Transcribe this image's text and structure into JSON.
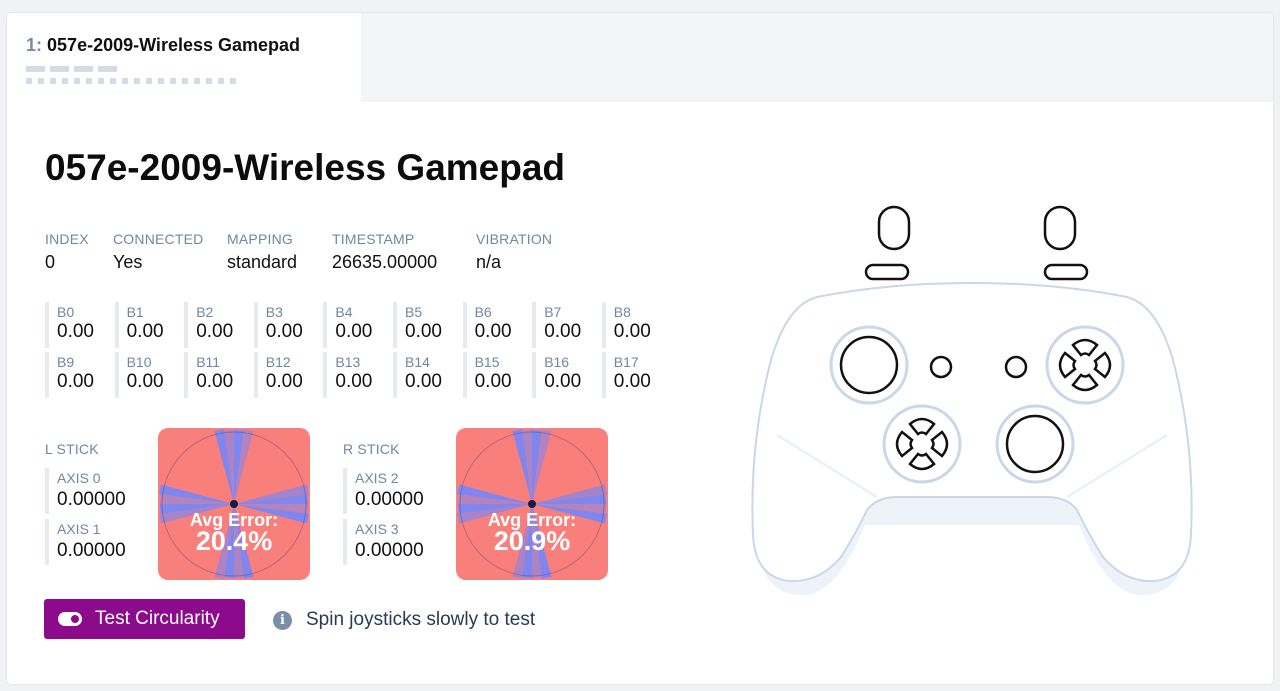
{
  "tab": {
    "index": "1:",
    "label": "057e-2009-Wireless Gamepad"
  },
  "gamepad": {
    "title": "057e-2009-Wireless Gamepad",
    "meta": [
      {
        "key": "INDEX",
        "value": "0"
      },
      {
        "key": "CONNECTED",
        "value": "Yes"
      },
      {
        "key": "MAPPING",
        "value": "standard"
      },
      {
        "key": "TIMESTAMP",
        "value": "26635.00000"
      },
      {
        "key": "VIBRATION",
        "value": "n/a"
      }
    ],
    "buttons": [
      {
        "key": "B0",
        "value": "0.00"
      },
      {
        "key": "B1",
        "value": "0.00"
      },
      {
        "key": "B2",
        "value": "0.00"
      },
      {
        "key": "B3",
        "value": "0.00"
      },
      {
        "key": "B4",
        "value": "0.00"
      },
      {
        "key": "B5",
        "value": "0.00"
      },
      {
        "key": "B6",
        "value": "0.00"
      },
      {
        "key": "B7",
        "value": "0.00"
      },
      {
        "key": "B8",
        "value": "0.00"
      },
      {
        "key": "B9",
        "value": "0.00"
      },
      {
        "key": "B10",
        "value": "0.00"
      },
      {
        "key": "B11",
        "value": "0.00"
      },
      {
        "key": "B12",
        "value": "0.00"
      },
      {
        "key": "B13",
        "value": "0.00"
      },
      {
        "key": "B14",
        "value": "0.00"
      },
      {
        "key": "B15",
        "value": "0.00"
      },
      {
        "key": "B16",
        "value": "0.00"
      },
      {
        "key": "B17",
        "value": "0.00"
      }
    ],
    "left_stick": {
      "label": "L STICK",
      "axes": [
        {
          "key": "AXIS 0",
          "value": "0.00000"
        },
        {
          "key": "AXIS 1",
          "value": "0.00000"
        }
      ],
      "avg_error_label": "Avg Error:",
      "avg_error": "20.4%"
    },
    "right_stick": {
      "label": "R STICK",
      "axes": [
        {
          "key": "AXIS 2",
          "value": "0.00000"
        },
        {
          "key": "AXIS 3",
          "value": "0.00000"
        }
      ],
      "avg_error_label": "Avg Error:",
      "avg_error": "20.9%"
    },
    "test_button": {
      "label": "Test Circularity",
      "icon": "toggle-icon"
    },
    "hint": {
      "icon": "info-icon",
      "text": "Spin joysticks slowly to test"
    }
  },
  "colors": {
    "accent": "#8c0a8c",
    "error_fill": "#f87f7b",
    "ok_fill": "#7f86f0",
    "controller_stroke": "#c9d7e8"
  }
}
